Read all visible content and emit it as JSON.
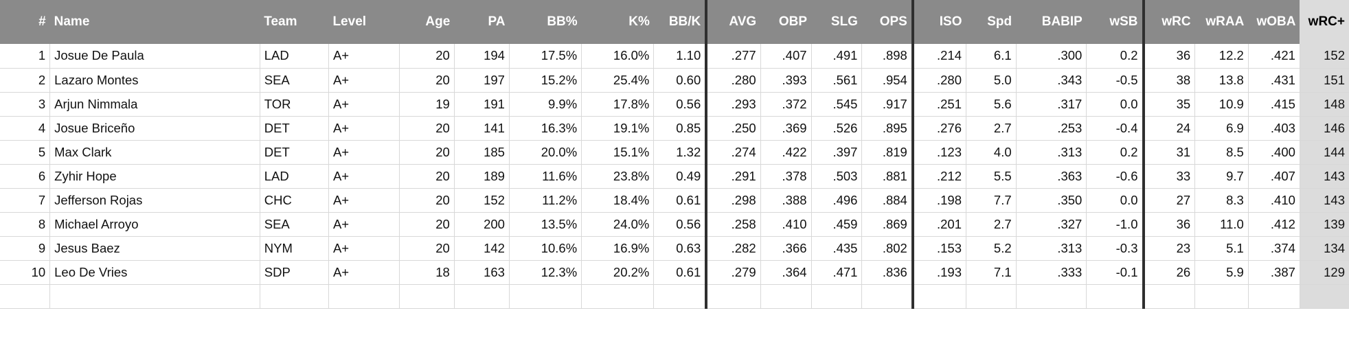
{
  "columns": [
    "#",
    "Name",
    "Team",
    "Level",
    "Age",
    "PA",
    "BB%",
    "K%",
    "BB/K",
    "AVG",
    "OBP",
    "SLG",
    "OPS",
    "ISO",
    "Spd",
    "BABIP",
    "wSB",
    "wRC",
    "wRAA",
    "wOBA",
    "wRC+"
  ],
  "rows": [
    [
      "1",
      "Josue De Paula",
      "LAD",
      "A+",
      "20",
      "194",
      "17.5%",
      "16.0%",
      "1.10",
      ".277",
      ".407",
      ".491",
      ".898",
      ".214",
      "6.1",
      ".300",
      "0.2",
      "36",
      "12.2",
      ".421",
      "152"
    ],
    [
      "2",
      "Lazaro Montes",
      "SEA",
      "A+",
      "20",
      "197",
      "15.2%",
      "25.4%",
      "0.60",
      ".280",
      ".393",
      ".561",
      ".954",
      ".280",
      "5.0",
      ".343",
      "-0.5",
      "38",
      "13.8",
      ".431",
      "151"
    ],
    [
      "3",
      "Arjun Nimmala",
      "TOR",
      "A+",
      "19",
      "191",
      "9.9%",
      "17.8%",
      "0.56",
      ".293",
      ".372",
      ".545",
      ".917",
      ".251",
      "5.6",
      ".317",
      "0.0",
      "35",
      "10.9",
      ".415",
      "148"
    ],
    [
      "4",
      "Josue Briceño",
      "DET",
      "A+",
      "20",
      "141",
      "16.3%",
      "19.1%",
      "0.85",
      ".250",
      ".369",
      ".526",
      ".895",
      ".276",
      "2.7",
      ".253",
      "-0.4",
      "24",
      "6.9",
      ".403",
      "146"
    ],
    [
      "5",
      "Max Clark",
      "DET",
      "A+",
      "20",
      "185",
      "20.0%",
      "15.1%",
      "1.32",
      ".274",
      ".422",
      ".397",
      ".819",
      ".123",
      "4.0",
      ".313",
      "0.2",
      "31",
      "8.5",
      ".400",
      "144"
    ],
    [
      "6",
      "Zyhir Hope",
      "LAD",
      "A+",
      "20",
      "189",
      "11.6%",
      "23.8%",
      "0.49",
      ".291",
      ".378",
      ".503",
      ".881",
      ".212",
      "5.5",
      ".363",
      "-0.6",
      "33",
      "9.7",
      ".407",
      "143"
    ],
    [
      "7",
      "Jefferson Rojas",
      "CHC",
      "A+",
      "20",
      "152",
      "11.2%",
      "18.4%",
      "0.61",
      ".298",
      ".388",
      ".496",
      ".884",
      ".198",
      "7.7",
      ".350",
      "0.0",
      "27",
      "8.3",
      ".410",
      "143"
    ],
    [
      "8",
      "Michael Arroyo",
      "SEA",
      "A+",
      "20",
      "200",
      "13.5%",
      "24.0%",
      "0.56",
      ".258",
      ".410",
      ".459",
      ".869",
      ".201",
      "2.7",
      ".327",
      "-1.0",
      "36",
      "11.0",
      ".412",
      "139"
    ],
    [
      "9",
      "Jesus Baez",
      "NYM",
      "A+",
      "20",
      "142",
      "10.6%",
      "16.9%",
      "0.63",
      ".282",
      ".366",
      ".435",
      ".802",
      ".153",
      "5.2",
      ".313",
      "-0.3",
      "23",
      "5.1",
      ".374",
      "134"
    ],
    [
      "10",
      "Leo De Vries",
      "SDP",
      "A+",
      "18",
      "163",
      "12.3%",
      "20.2%",
      "0.61",
      ".279",
      ".364",
      ".471",
      ".836",
      ".193",
      "7.1",
      ".333",
      "-0.1",
      "26",
      "5.9",
      ".387",
      "129"
    ]
  ]
}
